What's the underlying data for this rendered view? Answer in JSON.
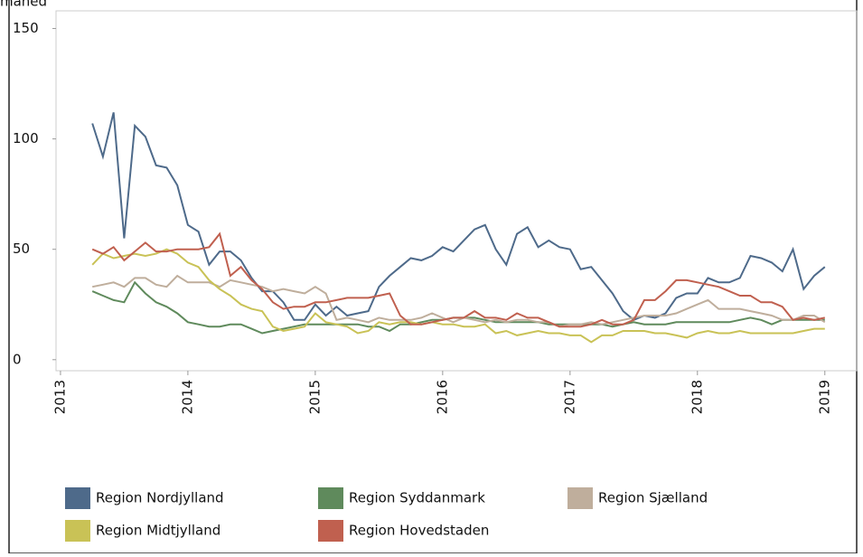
{
  "chart_data": {
    "type": "line",
    "y_label": "måned",
    "x": [
      2013.25,
      2013.3333,
      2013.4167,
      2013.5,
      2013.5833,
      2013.6667,
      2013.75,
      2013.8333,
      2013.9167,
      2014,
      2014.0833,
      2014.1667,
      2014.25,
      2014.3333,
      2014.4167,
      2014.5,
      2014.5833,
      2014.6667,
      2014.75,
      2014.8333,
      2014.9167,
      2015,
      2015.0833,
      2015.1667,
      2015.25,
      2015.3333,
      2015.4167,
      2015.5,
      2015.5833,
      2015.6667,
      2015.75,
      2015.8333,
      2015.9167,
      2016,
      2016.0833,
      2016.1667,
      2016.25,
      2016.3333,
      2016.4167,
      2016.5,
      2016.5833,
      2016.6667,
      2016.75,
      2016.8333,
      2016.9167,
      2017,
      2017.0833,
      2017.1667,
      2017.25,
      2017.3333,
      2017.4167,
      2017.5,
      2017.5833,
      2017.6667,
      2017.75,
      2017.8333,
      2017.9167,
      2018,
      2018.0833,
      2018.1667,
      2018.25,
      2018.3333,
      2018.4167,
      2018.5,
      2018.5833,
      2018.6667,
      2018.75,
      2018.8333,
      2018.9167,
      2019
    ],
    "series": [
      {
        "name": "Region Nordjylland",
        "color": "#4e6a8a",
        "values": [
          107,
          92,
          112,
          55,
          106,
          101,
          88,
          87,
          79,
          61,
          58,
          43,
          49,
          49,
          45,
          37,
          31,
          31,
          26,
          18,
          18,
          25,
          20,
          24,
          20,
          21,
          22,
          33,
          38,
          42,
          46,
          45,
          47,
          51,
          49,
          54,
          59,
          61,
          50,
          43,
          57,
          60,
          51,
          54,
          51,
          50,
          41,
          42,
          36,
          30,
          22,
          18,
          20,
          19,
          21,
          28,
          30,
          30,
          37,
          35,
          35,
          37,
          47,
          46,
          44,
          40,
          50,
          32,
          38,
          42
        ]
      },
      {
        "name": "Region Syddanmark",
        "color": "#5f8a5c",
        "values": [
          31,
          29,
          27,
          26,
          35,
          30,
          26,
          24,
          21,
          17,
          16,
          15,
          15,
          16,
          16,
          14,
          12,
          13,
          14,
          15,
          16,
          16,
          16,
          16,
          16,
          16,
          15,
          15,
          13,
          16,
          16,
          17,
          18,
          18,
          19,
          19,
          19,
          18,
          17,
          17,
          17,
          17,
          17,
          16,
          16,
          16,
          16,
          16,
          16,
          15,
          16,
          17,
          16,
          16,
          16,
          17,
          17,
          17,
          17,
          17,
          17,
          18,
          19,
          18,
          16,
          18,
          18,
          18,
          18,
          18
        ]
      },
      {
        "name": "Region Sjælland",
        "color": "#bfae9c",
        "values": [
          33,
          34,
          35,
          33,
          37,
          37,
          34,
          33,
          38,
          35,
          35,
          35,
          33,
          36,
          35,
          34,
          33,
          31,
          32,
          31,
          30,
          33,
          30,
          18,
          19,
          18,
          17,
          19,
          18,
          18,
          18,
          19,
          21,
          19,
          17,
          19,
          18,
          17,
          18,
          17,
          18,
          18,
          17,
          17,
          15,
          16,
          16,
          17,
          16,
          17,
          18,
          19,
          20,
          20,
          20,
          21,
          23,
          25,
          27,
          23,
          23,
          23,
          22,
          21,
          20,
          18,
          18,
          20,
          20,
          17
        ]
      },
      {
        "name": "Region Midtjylland",
        "color": "#c9c256",
        "values": [
          43,
          48,
          46,
          47,
          48,
          47,
          48,
          50,
          48,
          44,
          42,
          36,
          32,
          29,
          25,
          23,
          22,
          15,
          13,
          14,
          15,
          21,
          17,
          16,
          15,
          12,
          13,
          17,
          16,
          17,
          17,
          16,
          17,
          16,
          16,
          15,
          15,
          16,
          12,
          13,
          11,
          12,
          13,
          12,
          12,
          11,
          11,
          8,
          11,
          11,
          13,
          13,
          13,
          12,
          12,
          11,
          10,
          12,
          13,
          12,
          12,
          13,
          12,
          12,
          12,
          12,
          12,
          13,
          14,
          14
        ]
      },
      {
        "name": "Region Hovedstaden",
        "color": "#c0604f",
        "values": [
          50,
          48,
          51,
          45,
          49,
          53,
          49,
          49,
          50,
          50,
          50,
          51,
          57,
          38,
          42,
          36,
          32,
          26,
          23,
          24,
          24,
          26,
          26,
          27,
          28,
          28,
          28,
          29,
          30,
          20,
          16,
          16,
          17,
          18,
          19,
          19,
          22,
          19,
          19,
          18,
          21,
          19,
          19,
          17,
          15,
          15,
          15,
          16,
          18,
          16,
          16,
          18,
          27,
          27,
          31,
          36,
          36,
          35,
          34,
          33,
          31,
          29,
          29,
          26,
          26,
          24,
          18,
          19,
          18,
          19
        ]
      }
    ],
    "xlim": [
      2012.965,
      2019.25
    ],
    "xticks": [
      2013,
      2014,
      2015,
      2016,
      2017,
      2018,
      2019
    ],
    "ylim": [
      -5,
      158
    ],
    "yticks": [
      0,
      50,
      100,
      150
    ]
  }
}
